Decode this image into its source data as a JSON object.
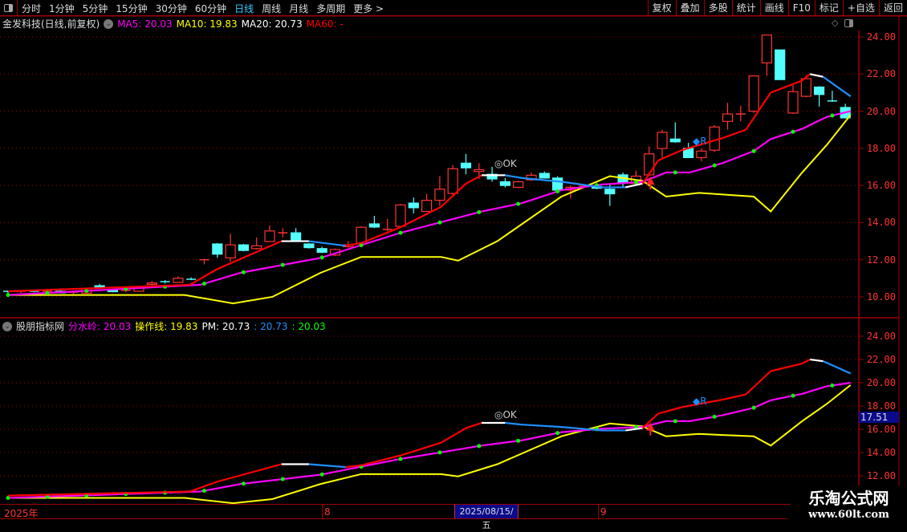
{
  "toolbar": {
    "periods": [
      "分时",
      "1分钟",
      "5分钟",
      "15分钟",
      "30分钟",
      "60分钟",
      "日线",
      "周线",
      "月线",
      "多周期",
      "更多 >"
    ],
    "active": "日线",
    "right_buttons": [
      "复权",
      "叠加",
      "多股",
      "统计",
      "画线",
      "F10",
      "标记",
      "+自选",
      "返回"
    ]
  },
  "main_legend": {
    "title": "金发科技(日线,前复权)",
    "ma5": "MA5: 20.03",
    "ma10": "MA10: 19.83",
    "ma20": "MA20: 20.73",
    "ma60": "MA60: -"
  },
  "sub_legend": {
    "title": "股朋指标网",
    "fsl": "分水岭: 20.03",
    "czx": "操作线: 19.83",
    "pm": "PM: 20.73",
    "v1": ": 20.73",
    "v2": ": 20.03"
  },
  "colors": {
    "up": "#ff3333",
    "down": "#54ffff",
    "pm_red": "#ff0000",
    "pm_white": "#ffffff",
    "pm_blue": "#1e90ff",
    "fsl": "#ff00ff",
    "fsl_dot": "#00ff00",
    "czx": "#ffff00",
    "grid": "#a00000",
    "axis_text": "#ff3333"
  },
  "markers": {
    "ok": "OK",
    "r": "R",
    "price_box": "17.51"
  },
  "date_axis": {
    "year": "2025年",
    "m8": "8",
    "cursor": "2025/08/15/五",
    "m9": "9"
  },
  "watermark": {
    "name": "乐淘公式网",
    "url": "www.60lt.com"
  },
  "chart_data": [
    {
      "type": "candlestick",
      "title": "金发科技(日线,前复权)",
      "ylim": [
        9,
        24.35
      ],
      "yticks": [
        24,
        22,
        20,
        18,
        16,
        14,
        12,
        10
      ],
      "ytick_labels": [
        "24.00",
        "22.00",
        "20.00",
        "18.00",
        "16.00",
        "14.00",
        "12.00",
        "10.00"
      ],
      "grid": true,
      "ohlc": [
        [
          10.3,
          10.35,
          10.2,
          10.25
        ],
        [
          10.25,
          10.35,
          10.2,
          10.3
        ],
        [
          10.3,
          10.35,
          10.25,
          10.28
        ],
        [
          10.28,
          10.35,
          10.2,
          10.3
        ],
        [
          10.3,
          10.35,
          10.2,
          10.22
        ],
        [
          10.22,
          10.3,
          10.15,
          10.25
        ],
        [
          10.2,
          10.5,
          10.18,
          10.45
        ],
        [
          10.6,
          10.7,
          10.45,
          10.5
        ],
        [
          10.35,
          10.4,
          10.25,
          10.28
        ],
        [
          10.3,
          10.4,
          10.25,
          10.35
        ],
        [
          10.3,
          10.55,
          10.28,
          10.5
        ],
        [
          10.67,
          10.85,
          10.6,
          10.75
        ],
        [
          10.82,
          10.9,
          10.72,
          10.8
        ],
        [
          10.78,
          11.1,
          10.75,
          11.0
        ],
        [
          10.95,
          11.05,
          10.9,
          10.93
        ],
        [
          12.0,
          12.05,
          11.75,
          12.0
        ],
        [
          12.85,
          12.9,
          12.1,
          12.3
        ],
        [
          12.1,
          13.4,
          11.9,
          12.8
        ],
        [
          12.8,
          12.85,
          12.45,
          12.5
        ],
        [
          12.6,
          13.2,
          12.55,
          12.75
        ],
        [
          12.98,
          13.85,
          12.95,
          13.55
        ],
        [
          13.4,
          13.7,
          13.2,
          13.45
        ],
        [
          13.45,
          13.7,
          13.0,
          13.05
        ],
        [
          12.85,
          12.9,
          12.6,
          12.65
        ],
        [
          12.6,
          12.7,
          12.35,
          12.4
        ],
        [
          12.25,
          12.6,
          12.2,
          12.55
        ],
        [
          12.7,
          13.0,
          12.65,
          12.8
        ],
        [
          12.85,
          13.8,
          12.8,
          13.75
        ],
        [
          13.93,
          14.36,
          13.7,
          13.76
        ],
        [
          13.63,
          14.2,
          13.55,
          13.63
        ],
        [
          13.8,
          15.0,
          13.78,
          14.95
        ],
        [
          15.05,
          15.35,
          14.5,
          14.8
        ],
        [
          14.6,
          15.55,
          14.6,
          15.2
        ],
        [
          15.2,
          16.5,
          14.9,
          15.8
        ],
        [
          15.57,
          17.1,
          15.5,
          16.9
        ],
        [
          17.2,
          17.7,
          16.6,
          16.95
        ],
        [
          16.75,
          17.2,
          16.35,
          16.85
        ],
        [
          16.6,
          17.0,
          16.2,
          16.35
        ],
        [
          16.2,
          16.4,
          15.9,
          16.0
        ],
        [
          15.9,
          16.25,
          15.85,
          16.2
        ],
        [
          16.3,
          16.7,
          16.25,
          16.55
        ],
        [
          16.65,
          16.75,
          16.4,
          16.4
        ],
        [
          16.4,
          16.5,
          15.75,
          15.75
        ],
        [
          15.75,
          16.0,
          15.3,
          15.9
        ],
        [
          15.9,
          16.05,
          15.85,
          15.96
        ],
        [
          15.95,
          16.0,
          15.8,
          15.85
        ],
        [
          15.8,
          16.05,
          14.9,
          15.55
        ],
        [
          16.57,
          16.7,
          15.9,
          16.18
        ],
        [
          16.1,
          16.8,
          16.05,
          16.5
        ],
        [
          16.57,
          18.1,
          16.5,
          17.7
        ],
        [
          17.99,
          19.0,
          17.5,
          18.86
        ],
        [
          18.5,
          19.4,
          18.3,
          18.35
        ],
        [
          18.0,
          18.3,
          17.5,
          17.5
        ],
        [
          17.5,
          18.0,
          17.3,
          17.85
        ],
        [
          17.9,
          19.25,
          17.8,
          19.15
        ],
        [
          19.45,
          20.45,
          19.0,
          19.85
        ],
        [
          19.8,
          20.3,
          19.45,
          19.85
        ],
        [
          20.0,
          21.9,
          19.9,
          21.9
        ],
        [
          22.6,
          24.1,
          21.9,
          24.1
        ],
        [
          23.3,
          23.3,
          21.7,
          21.7
        ],
        [
          19.9,
          21.4,
          19.85,
          21.05
        ],
        [
          20.8,
          21.9,
          20.75,
          21.75
        ],
        [
          21.3,
          21.35,
          20.25,
          20.9
        ],
        [
          20.55,
          21.1,
          20.5,
          20.5
        ],
        [
          20.2,
          20.4,
          19.6,
          19.64
        ]
      ]
    },
    {
      "type": "line",
      "title": "股朋指标网",
      "ylim": [
        10.1,
        25.3
      ],
      "yticks": [
        24,
        22,
        20,
        18,
        16,
        14,
        12
      ],
      "ytick_labels": [
        "24.00",
        "22.00",
        "20.00",
        "18.00",
        "16.00",
        "14.00",
        "12.00"
      ],
      "grid": true
    }
  ],
  "lines": {
    "pm": [
      [
        0,
        10.3,
        "r"
      ],
      [
        13.9,
        10.65,
        "r"
      ],
      [
        16,
        11.5,
        "r"
      ],
      [
        20.9,
        13.0,
        "w"
      ],
      [
        23,
        13.0,
        "b"
      ],
      [
        25.8,
        12.75,
        "r"
      ],
      [
        27,
        12.9,
        "r"
      ],
      [
        30,
        13.75,
        "r"
      ],
      [
        33.1,
        14.85,
        "r"
      ],
      [
        35,
        16.1,
        "r"
      ],
      [
        36.2,
        16.55,
        "w"
      ],
      [
        38,
        16.55,
        "b"
      ],
      [
        39.3,
        16.4,
        "b"
      ],
      [
        42.3,
        16.2,
        "b"
      ],
      [
        45.4,
        15.9,
        "b"
      ],
      [
        47.2,
        15.9,
        "w"
      ],
      [
        48.5,
        16.1,
        "r"
      ],
      [
        49.7,
        17.35,
        "r"
      ],
      [
        51.5,
        17.9,
        "r"
      ],
      [
        54.6,
        18.55,
        "r"
      ],
      [
        56.4,
        19.0,
        "r"
      ],
      [
        58.3,
        21.0,
        "r"
      ],
      [
        60.7,
        21.65,
        "r"
      ],
      [
        61.3,
        22.0,
        "w"
      ],
      [
        62.3,
        21.85,
        "b"
      ],
      [
        64.4,
        20.8,
        "b"
      ]
    ],
    "fsl": [
      [
        0,
        10.1
      ],
      [
        14.7,
        10.65
      ],
      [
        17.8,
        11.3
      ],
      [
        23.9,
        12.1
      ],
      [
        30,
        13.45
      ],
      [
        36.2,
        14.6
      ],
      [
        39.3,
        15.05
      ],
      [
        42.3,
        15.75
      ],
      [
        45.4,
        16.05
      ],
      [
        48.5,
        16.2
      ],
      [
        50.3,
        16.7
      ],
      [
        52.1,
        16.7
      ],
      [
        54.6,
        17.2
      ],
      [
        57,
        17.85
      ],
      [
        58.3,
        18.5
      ],
      [
        60.7,
        19.05
      ],
      [
        62.6,
        19.7
      ],
      [
        64.4,
        20.0
      ]
    ],
    "czx": [
      [
        0,
        10.1
      ],
      [
        13.5,
        10.1
      ],
      [
        17.2,
        9.65
      ],
      [
        20.2,
        10.0
      ],
      [
        23.9,
        11.3
      ],
      [
        27,
        12.15
      ],
      [
        33.1,
        12.15
      ],
      [
        34.4,
        11.95
      ],
      [
        37.4,
        13.0
      ],
      [
        42.3,
        15.4
      ],
      [
        46,
        16.5
      ],
      [
        48.5,
        16.25
      ],
      [
        50.3,
        15.4
      ],
      [
        52.8,
        15.6
      ],
      [
        57,
        15.4
      ],
      [
        58.3,
        14.6
      ],
      [
        60.7,
        16.7
      ],
      [
        62.6,
        18.2
      ],
      [
        64.4,
        19.8
      ]
    ]
  }
}
